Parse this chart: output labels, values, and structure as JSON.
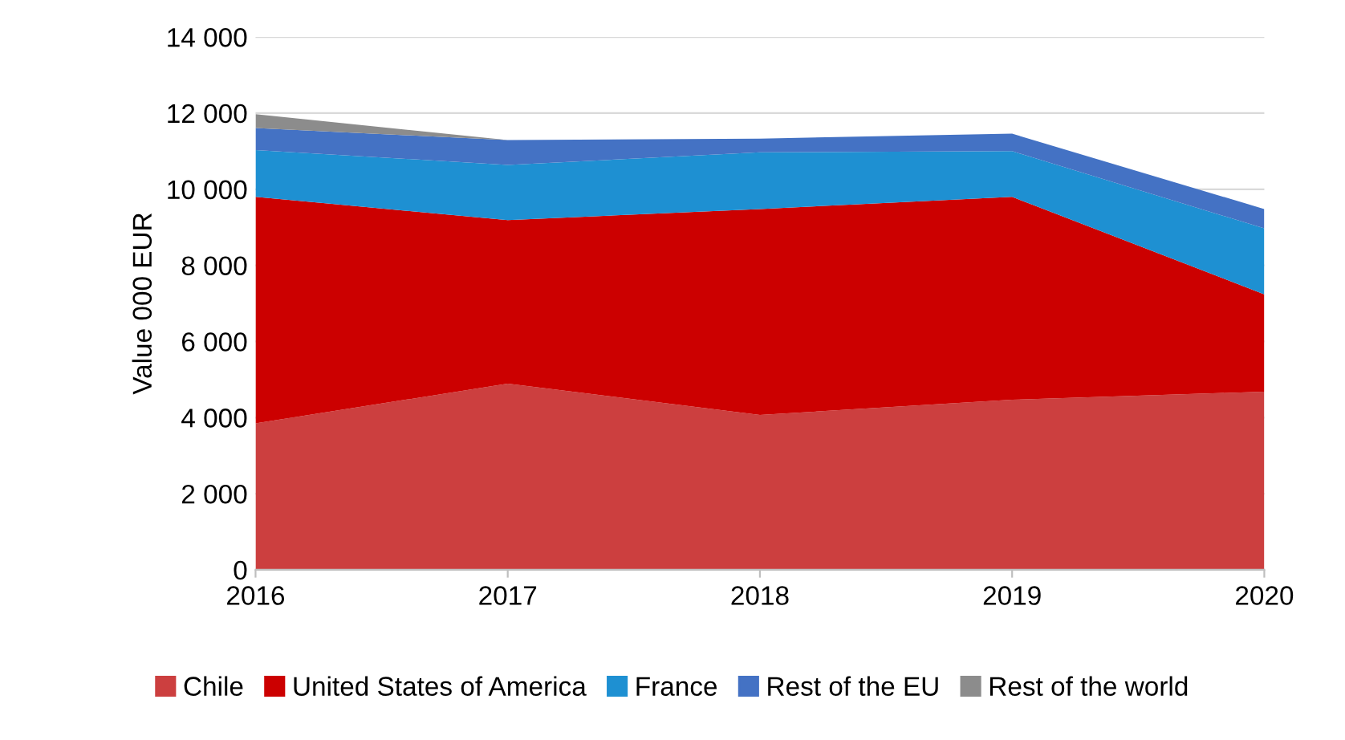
{
  "chart_data": {
    "type": "area",
    "stacked": true,
    "ylabel": "Value 000 EUR",
    "x": [
      2016,
      2017,
      2018,
      2019,
      2020
    ],
    "xlim": [
      2016,
      2020
    ],
    "xticks": [
      2016,
      2017,
      2018,
      2019,
      2020
    ],
    "ylim": [
      0,
      14000
    ],
    "yticks": [
      {
        "value": 0,
        "label": "0"
      },
      {
        "value": 2000,
        "label": "2 000"
      },
      {
        "value": 4000,
        "label": "4 000"
      },
      {
        "value": 6000,
        "label": "6 000"
      },
      {
        "value": 8000,
        "label": "8 000"
      },
      {
        "value": 10000,
        "label": "10 000"
      },
      {
        "value": 12000,
        "label": "12 000"
      },
      {
        "value": 14000,
        "label": "14 000"
      }
    ],
    "grid": "y",
    "legend": "bottom",
    "series": [
      {
        "name": "Chile",
        "color": "#cc3f3f",
        "values": [
          3850,
          4890,
          4070,
          4470,
          4680
        ]
      },
      {
        "name": "United States of America",
        "color": "#cc0000",
        "values": [
          5950,
          4300,
          5410,
          5330,
          2560
        ]
      },
      {
        "name": "France",
        "color": "#1e90d2",
        "values": [
          1230,
          1450,
          1490,
          1200,
          1730
        ]
      },
      {
        "name": "Rest of the EU",
        "color": "#4472c4",
        "values": [
          580,
          650,
          360,
          460,
          510
        ]
      },
      {
        "name": "Rest of the world",
        "color": "#8c8c8c",
        "values": [
          360,
          0,
          0,
          0,
          0
        ]
      }
    ]
  }
}
